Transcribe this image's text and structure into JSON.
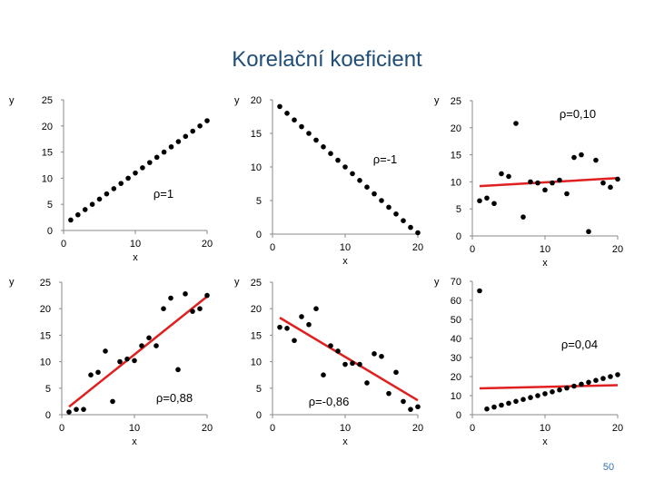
{
  "slide": {
    "title": "Korelační koeficient",
    "page_number": "50"
  },
  "colors": {
    "points": "#000000",
    "fit_line": "#e02020",
    "axis": "#888888",
    "text": "#000000"
  },
  "chart_data": [
    {
      "type": "scatter",
      "panel": "top-left",
      "ylabel": "y",
      "xlabel": "x",
      "xlim": [
        0,
        20
      ],
      "ylim": [
        0,
        25
      ],
      "xticks": [
        0,
        10,
        20
      ],
      "yticks": [
        0,
        5,
        10,
        15,
        20,
        25
      ],
      "annotation": "ρ=1",
      "fit_line": false,
      "points": [
        [
          1,
          2
        ],
        [
          2,
          3
        ],
        [
          3,
          4
        ],
        [
          4,
          5
        ],
        [
          5,
          6
        ],
        [
          6,
          7
        ],
        [
          7,
          8
        ],
        [
          8,
          9
        ],
        [
          9,
          10
        ],
        [
          10,
          11
        ],
        [
          11,
          12
        ],
        [
          12,
          13
        ],
        [
          13,
          14
        ],
        [
          14,
          15
        ],
        [
          15,
          16
        ],
        [
          16,
          17
        ],
        [
          17,
          18
        ],
        [
          18,
          19
        ],
        [
          19,
          20
        ],
        [
          20,
          21
        ]
      ]
    },
    {
      "type": "scatter",
      "panel": "top-center",
      "ylabel": "y",
      "xlabel": "x",
      "xlim": [
        0,
        20
      ],
      "ylim": [
        0,
        20
      ],
      "xticks": [
        0,
        10,
        20
      ],
      "yticks": [
        0,
        5,
        10,
        15,
        20
      ],
      "annotation": "ρ=-1",
      "fit_line": false,
      "points": [
        [
          1,
          19
        ],
        [
          2,
          18
        ],
        [
          3,
          17
        ],
        [
          4,
          16
        ],
        [
          5,
          15
        ],
        [
          6,
          14
        ],
        [
          7,
          13
        ],
        [
          8,
          12
        ],
        [
          9,
          11
        ],
        [
          10,
          10
        ],
        [
          11,
          9
        ],
        [
          12,
          8
        ],
        [
          13,
          7
        ],
        [
          14,
          6
        ],
        [
          15,
          5
        ],
        [
          16,
          4
        ],
        [
          17,
          3
        ],
        [
          18,
          2
        ],
        [
          19,
          1
        ],
        [
          20,
          0.2
        ]
      ]
    },
    {
      "type": "scatter",
      "panel": "top-right",
      "ylabel": "y",
      "xlabel": "x",
      "xlim": [
        0,
        20
      ],
      "ylim": [
        0,
        25
      ],
      "xticks": [
        0,
        10,
        20
      ],
      "yticks": [
        0,
        5,
        10,
        15,
        20,
        25
      ],
      "annotation": "ρ=0,10",
      "fit_line": true,
      "fit": [
        [
          1,
          9.2
        ],
        [
          20,
          10.7
        ]
      ],
      "points": [
        [
          1,
          6.5
        ],
        [
          2,
          7
        ],
        [
          3,
          6
        ],
        [
          4,
          11.5
        ],
        [
          5,
          11
        ],
        [
          6,
          20.8
        ],
        [
          7,
          3.5
        ],
        [
          8,
          10
        ],
        [
          9,
          9.8
        ],
        [
          10,
          8.5
        ],
        [
          11,
          9.8
        ],
        [
          12,
          10.3
        ],
        [
          13,
          7.8
        ],
        [
          14,
          14.5
        ],
        [
          15,
          15
        ],
        [
          16,
          0.8
        ],
        [
          17,
          14
        ],
        [
          18,
          9.8
        ],
        [
          19,
          9
        ],
        [
          20,
          10.5
        ]
      ]
    },
    {
      "type": "scatter",
      "panel": "bottom-left",
      "ylabel": "y",
      "xlabel": "x",
      "xlim": [
        0,
        20
      ],
      "ylim": [
        0,
        25
      ],
      "xticks": [
        0,
        10,
        20
      ],
      "yticks": [
        0,
        5,
        10,
        15,
        20,
        25
      ],
      "annotation": "ρ=0,88",
      "fit_line": true,
      "fit": [
        [
          1,
          1.5
        ],
        [
          20,
          22.3
        ]
      ],
      "points": [
        [
          1,
          0.5
        ],
        [
          2,
          1
        ],
        [
          3,
          1
        ],
        [
          4,
          7.5
        ],
        [
          5,
          8
        ],
        [
          6,
          12
        ],
        [
          7,
          2.5
        ],
        [
          8,
          10
        ],
        [
          9,
          10.5
        ],
        [
          10,
          10.2
        ],
        [
          11,
          13
        ],
        [
          12,
          14.5
        ],
        [
          13,
          13
        ],
        [
          14,
          20
        ],
        [
          15,
          22
        ],
        [
          16,
          8.5
        ],
        [
          17,
          22.8
        ],
        [
          18,
          19.5
        ],
        [
          19,
          20
        ],
        [
          20,
          22.5
        ]
      ]
    },
    {
      "type": "scatter",
      "panel": "bottom-center",
      "ylabel": "y",
      "xlabel": "x",
      "xlim": [
        0,
        20
      ],
      "ylim": [
        0,
        25
      ],
      "xticks": [
        0,
        10,
        20
      ],
      "yticks": [
        0,
        5,
        10,
        15,
        20,
        25
      ],
      "annotation": "ρ=-0,86",
      "fit_line": true,
      "fit": [
        [
          1,
          18.3
        ],
        [
          20,
          2.7
        ]
      ],
      "points": [
        [
          1,
          16.5
        ],
        [
          2,
          16.3
        ],
        [
          3,
          14
        ],
        [
          4,
          18.5
        ],
        [
          5,
          17
        ],
        [
          6,
          20
        ],
        [
          7,
          7.5
        ],
        [
          8,
          13
        ],
        [
          9,
          12
        ],
        [
          10,
          9.5
        ],
        [
          11,
          9.7
        ],
        [
          12,
          9.5
        ],
        [
          13,
          6
        ],
        [
          14,
          11.5
        ],
        [
          15,
          11
        ],
        [
          16,
          4
        ],
        [
          17,
          8
        ],
        [
          18,
          2.5
        ],
        [
          19,
          1
        ],
        [
          20,
          1.5
        ]
      ]
    },
    {
      "type": "scatter",
      "panel": "bottom-right",
      "ylabel": "y",
      "xlabel": "x",
      "xlim": [
        0,
        20
      ],
      "ylim": [
        0,
        70
      ],
      "xticks": [
        0,
        10,
        20
      ],
      "yticks": [
        0,
        10,
        20,
        30,
        40,
        50,
        60,
        70
      ],
      "annotation": "ρ=0,04",
      "fit_line": true,
      "fit": [
        [
          1,
          13.8
        ],
        [
          20,
          15.5
        ]
      ],
      "points": [
        [
          1,
          65
        ],
        [
          2,
          3
        ],
        [
          3,
          4
        ],
        [
          4,
          5
        ],
        [
          5,
          6
        ],
        [
          6,
          7
        ],
        [
          7,
          8
        ],
        [
          8,
          9
        ],
        [
          9,
          10
        ],
        [
          10,
          11
        ],
        [
          11,
          12
        ],
        [
          12,
          13
        ],
        [
          13,
          14
        ],
        [
          14,
          15
        ],
        [
          15,
          16
        ],
        [
          16,
          17
        ],
        [
          17,
          18
        ],
        [
          18,
          19
        ],
        [
          19,
          20
        ],
        [
          20,
          21
        ]
      ]
    }
  ]
}
